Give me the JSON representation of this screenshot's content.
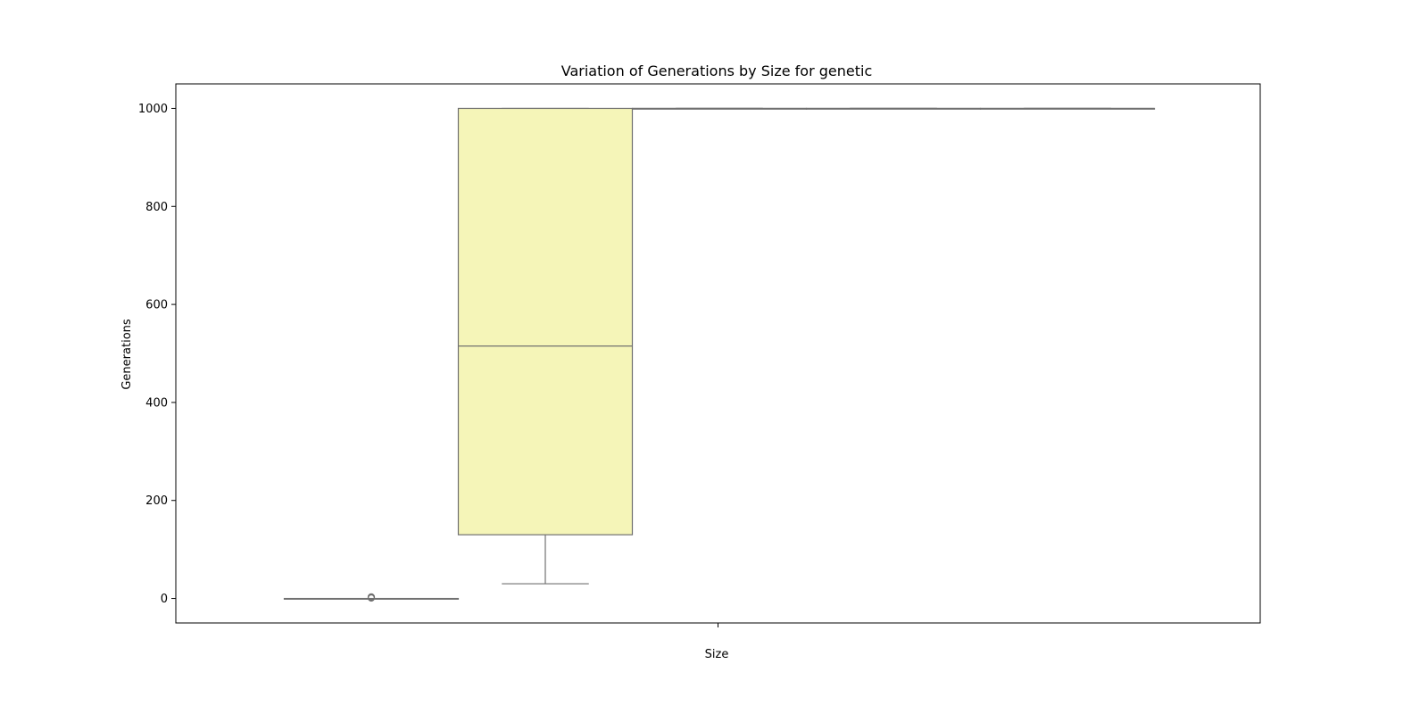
{
  "chart_data": {
    "type": "box",
    "title": "Variation of Generations by Size for genetic",
    "xlabel": "Size",
    "ylabel": "Generations",
    "ylim": [
      -50,
      1050
    ],
    "yticks": [
      0,
      200,
      400,
      600,
      800,
      1000
    ],
    "xticks": [
      ""
    ],
    "grid": false,
    "legend": "none",
    "box_fill": "#f5f5b8",
    "line_color": "#707070",
    "boxes": [
      {
        "min": 0,
        "q1": 0,
        "median": 0,
        "q3": 0,
        "max": 0,
        "whisker_cap": 0,
        "outliers": [
          1,
          2,
          3
        ]
      },
      {
        "min": 30,
        "q1": 130,
        "median": 515,
        "q3": 1000,
        "max": 1000,
        "whisker_cap": 0,
        "outliers": []
      },
      {
        "min": 1000,
        "q1": 1000,
        "median": 1000,
        "q3": 1000,
        "max": 1000,
        "whisker_cap": 0,
        "outliers": []
      },
      {
        "min": 1000,
        "q1": 1000,
        "median": 1000,
        "q3": 1000,
        "max": 1000,
        "whisker_cap": 0,
        "outliers": []
      },
      {
        "min": 1000,
        "q1": 1000,
        "median": 1000,
        "q3": 1000,
        "max": 1000,
        "whisker_cap": 0,
        "outliers": []
      }
    ]
  }
}
